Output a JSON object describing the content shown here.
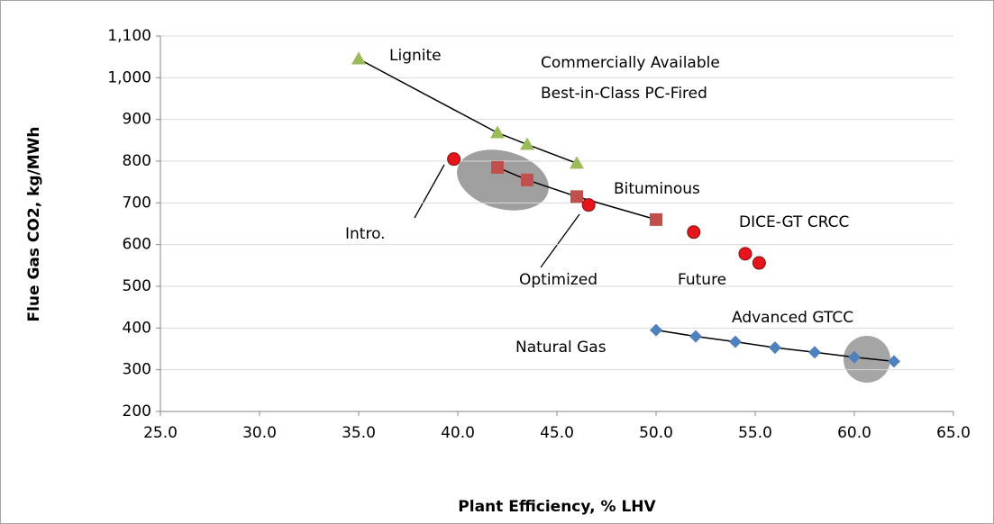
{
  "chart_data": {
    "type": "scatter",
    "x_label": "Plant Efficiency, % LHV",
    "y_label": "Flue Gas CO2, kg/MWh",
    "xlim": [
      25,
      65
    ],
    "xticks": [
      {
        "value": 25,
        "label": "25.0"
      },
      {
        "value": 30,
        "label": "30.0"
      },
      {
        "value": 35,
        "label": "35.0"
      },
      {
        "value": 40,
        "label": "40.0"
      },
      {
        "value": 45,
        "label": "45.0"
      },
      {
        "value": 50,
        "label": "50.0"
      },
      {
        "value": 55,
        "label": "55.0"
      },
      {
        "value": 60,
        "label": "60.0"
      },
      {
        "value": 65,
        "label": "65.0"
      }
    ],
    "ylim": [
      200,
      1100
    ],
    "yticks": [
      200,
      300,
      400,
      500,
      600,
      700,
      800,
      900,
      {
        "value": 1000,
        "label": "1,000"
      },
      {
        "value": 1100,
        "label": "1,100"
      }
    ],
    "grid": true,
    "series": [
      {
        "color": "#9bbb59",
        "marker": "triangle",
        "trendline": true,
        "x": [
          35,
          42,
          43.5,
          46
        ],
        "values": [
          1045,
          868,
          840,
          795
        ]
      },
      {
        "color": "#c0504d",
        "marker": "square",
        "trendline": true,
        "x": [
          42,
          43.5,
          46,
          50
        ],
        "values": [
          785,
          755,
          715,
          660
        ]
      },
      {
        "color": "#e8141c",
        "marker": "circle",
        "trendline": false,
        "x": [
          39.8,
          46.6,
          51.9,
          54.5,
          55.2
        ],
        "values": [
          805,
          695,
          630,
          578,
          556
        ]
      },
      {
        "color": "#4f81bd",
        "marker": "diamond",
        "trendline": true,
        "x": [
          50,
          52,
          54,
          56,
          58,
          60,
          62
        ],
        "values": [
          395,
          380,
          367,
          353,
          342,
          330,
          320
        ]
      }
    ],
    "annotations": [
      "Lignite",
      "Commercially Available",
      "Best-in-Class PC-Fired",
      "Bituminous",
      "DICE-GT CRCC",
      "Intro.",
      "Optimized",
      "Future",
      "Advanced GTCC",
      "Natural Gas"
    ]
  }
}
